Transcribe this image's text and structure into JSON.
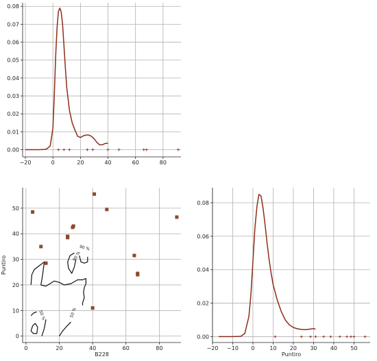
{
  "chart_data": [
    {
      "type": "line",
      "panel": "top-left",
      "title": "",
      "xlabel": "",
      "ylabel": "",
      "xlim": [
        -22,
        93
      ],
      "ylim": [
        -0.004,
        0.082
      ],
      "xticks": [
        -20,
        0,
        20,
        40,
        60,
        80
      ],
      "yticks": [
        0.0,
        0.01,
        0.02,
        0.03,
        0.04,
        0.05,
        0.06,
        0.07,
        0.08
      ],
      "grid": true,
      "line_color": "#8b2e16",
      "series": [
        {
          "x": [
            -20,
            -10,
            -5,
            -2,
            0,
            1,
            2,
            3,
            4,
            5,
            6,
            7,
            8,
            9,
            10,
            12,
            14,
            16,
            18,
            20,
            22,
            24,
            26,
            28,
            30,
            32,
            34,
            36,
            38,
            40
          ],
          "values": [
            0,
            0,
            0.0002,
            0.002,
            0.012,
            0.03,
            0.052,
            0.068,
            0.077,
            0.079,
            0.077,
            0.07,
            0.058,
            0.046,
            0.035,
            0.022,
            0.015,
            0.011,
            0.0075,
            0.0068,
            0.0077,
            0.0082,
            0.0082,
            0.0075,
            0.006,
            0.004,
            0.0027,
            0.0028,
            0.0035,
            0.0036
          ]
        }
      ],
      "rug_x": [
        4,
        8,
        12,
        25,
        29,
        40,
        48,
        66,
        68,
        91
      ]
    },
    {
      "type": "scatter",
      "panel": "bottom-left",
      "title": "",
      "xlabel": "B228",
      "ylabel": "Puntiro",
      "xlim": [
        -2,
        93
      ],
      "ylim": [
        -2.5,
        58
      ],
      "xticks": [
        0,
        20,
        40,
        60,
        80
      ],
      "yticks": [
        0,
        10,
        20,
        30,
        40,
        50
      ],
      "grid": true,
      "point_color": "#8b4a2b",
      "points": [
        {
          "x": 4,
          "y": 48.5
        },
        {
          "x": 9,
          "y": 35
        },
        {
          "x": 12,
          "y": 28.5
        },
        {
          "x": 25,
          "y": 39
        },
        {
          "x": 25,
          "y": 38.5
        },
        {
          "x": 28,
          "y": 42.5
        },
        {
          "x": 28.5,
          "y": 43
        },
        {
          "x": 40,
          "y": 11
        },
        {
          "x": 41,
          "y": 55.5
        },
        {
          "x": 48.5,
          "y": 49.5
        },
        {
          "x": 65,
          "y": 31.5
        },
        {
          "x": 67,
          "y": 24.5
        },
        {
          "x": 67,
          "y": 24
        },
        {
          "x": 90.5,
          "y": 46.5
        }
      ],
      "contour_labels": [
        "90 %",
        "90 %",
        "50 %",
        "50 %"
      ],
      "contours": [
        [
          [
            3,
            20
          ],
          [
            3.5,
            24
          ],
          [
            5,
            26
          ],
          [
            8,
            27.5
          ],
          [
            11,
            29
          ],
          [
            10,
            24
          ],
          [
            9,
            20
          ],
          [
            12,
            19.5
          ],
          [
            17,
            21.5
          ],
          [
            20,
            21
          ],
          [
            23,
            20
          ],
          [
            27,
            20.5
          ],
          [
            31,
            22
          ],
          [
            34,
            22
          ],
          [
            36,
            22.5
          ],
          [
            36,
            20.5
          ],
          [
            35,
            19
          ],
          [
            34.5,
            17
          ],
          [
            35,
            15
          ],
          [
            34,
            13
          ],
          [
            34,
            12
          ]
        ],
        [
          [
            32,
            31.5
          ],
          [
            33,
            29
          ],
          [
            35,
            28.5
          ],
          [
            37,
            29
          ],
          [
            37,
            31
          ]
        ],
        [
          [
            29,
            32.5
          ],
          [
            26.5,
            31.5
          ],
          [
            25,
            29
          ],
          [
            25.5,
            26.5
          ],
          [
            27.5,
            24.5
          ],
          [
            29,
            27
          ],
          [
            30,
            30
          ]
        ],
        [
          [
            27,
            5.5
          ],
          [
            24,
            3.5
          ],
          [
            22,
            2
          ],
          [
            20,
            0
          ]
        ],
        [
          [
            3,
            8
          ],
          [
            4.5,
            9
          ],
          [
            6.5,
            9.5
          ]
        ],
        [
          [
            3,
            2
          ],
          [
            4,
            4
          ],
          [
            5.5,
            5
          ],
          [
            7,
            3.5
          ],
          [
            6.5,
            1
          ],
          [
            4.5,
            1
          ],
          [
            3,
            2
          ]
        ],
        [
          [
            9.5,
            0
          ],
          [
            11,
            3
          ],
          [
            12,
            6.5
          ]
        ]
      ]
    },
    {
      "type": "line",
      "panel": "bottom-right",
      "title": "",
      "xlabel": "Puntiro",
      "ylabel": "",
      "xlim": [
        -20,
        58
      ],
      "ylim": [
        -0.0035,
        0.089
      ],
      "xticks": [
        -20,
        -10,
        0,
        10,
        20,
        30,
        40,
        50
      ],
      "yticks": [
        0.0,
        0.02,
        0.04,
        0.06,
        0.08
      ],
      "grid": true,
      "line_color": "#8b2e16",
      "series": [
        {
          "x": [
            -17,
            -10,
            -6,
            -4,
            -2,
            -1,
            0,
            1,
            2,
            3,
            4,
            5,
            6,
            7,
            8,
            9,
            10,
            12,
            14,
            16,
            18,
            20,
            22,
            24,
            26,
            28,
            30,
            31
          ],
          "values": [
            0,
            0,
            0.0002,
            0.002,
            0.012,
            0.025,
            0.045,
            0.065,
            0.078,
            0.085,
            0.084,
            0.077,
            0.067,
            0.056,
            0.046,
            0.038,
            0.031,
            0.022,
            0.015,
            0.01,
            0.007,
            0.0055,
            0.0047,
            0.0043,
            0.0042,
            0.0045,
            0.0048,
            0.0045
          ]
        }
      ],
      "rug_x": [
        11,
        24,
        28.5,
        31,
        35,
        38.5,
        43,
        46.5,
        48.5,
        50,
        55.5
      ]
    }
  ]
}
